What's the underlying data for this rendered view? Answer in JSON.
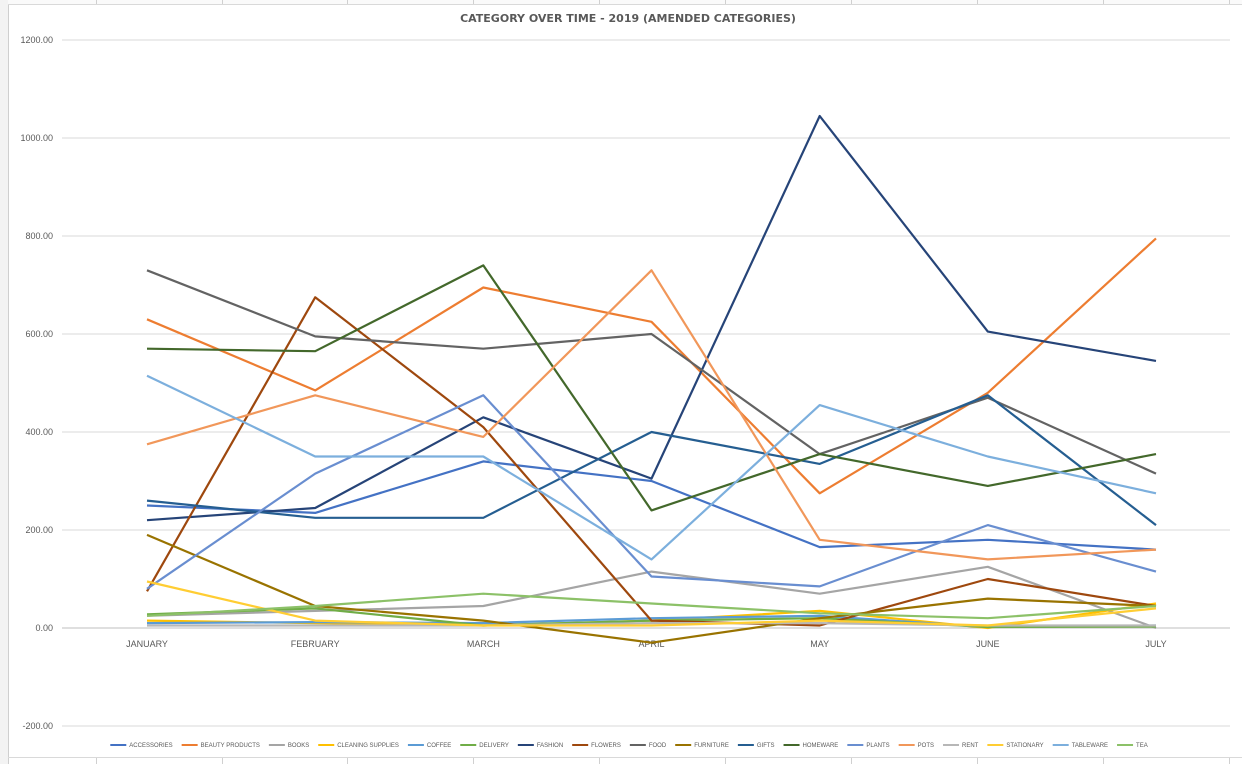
{
  "chart_data": {
    "type": "line",
    "title": "CATEGORY OVER TIME - 2019 (AMENDED CATEGORIES)",
    "xlabel": "",
    "ylabel": "",
    "categories": [
      "JANUARY",
      "FEBRUARY",
      "MARCH",
      "APRIL",
      "MAY",
      "JUNE",
      "JULY"
    ],
    "ylim": [
      -200,
      1200
    ],
    "y_ticks": [
      "-200.00",
      "0.00",
      "200.00",
      "400.00",
      "600.00",
      "800.00",
      "1000.00",
      "1200.00"
    ],
    "y_tick_values": [
      -200,
      0,
      200,
      400,
      600,
      800,
      1000,
      1200
    ],
    "grid": true,
    "legend_position": "bottom",
    "series": [
      {
        "name": "ACCESSORIES",
        "color": "#4472c4",
        "values": [
          250,
          235,
          340,
          300,
          165,
          180,
          160
        ]
      },
      {
        "name": "BEAUTY PRODUCTS",
        "color": "#ed7d31",
        "values": [
          630,
          485,
          695,
          625,
          275,
          480,
          795
        ]
      },
      {
        "name": "BOOKS",
        "color": "#a5a5a5",
        "values": [
          25,
          35,
          45,
          115,
          70,
          125,
          0
        ]
      },
      {
        "name": "CLEANING SUPPLIES",
        "color": "#ffc000",
        "values": [
          15,
          10,
          5,
          15,
          35,
          0,
          50
        ]
      },
      {
        "name": "COFFEE",
        "color": "#5b9bd5",
        "values": [
          10,
          12,
          10,
          20,
          25,
          2,
          5
        ]
      },
      {
        "name": "DELIVERY",
        "color": "#70ad47",
        "values": [
          28,
          40,
          5,
          15,
          20,
          2,
          3
        ]
      },
      {
        "name": "FASHION",
        "color": "#264478",
        "values": [
          220,
          245,
          430,
          305,
          1045,
          605,
          545
        ]
      },
      {
        "name": "FLOWERS",
        "color": "#9e480e",
        "values": [
          75,
          675,
          410,
          15,
          5,
          100,
          45
        ]
      },
      {
        "name": "FOOD",
        "color": "#636363",
        "values": [
          730,
          595,
          570,
          600,
          355,
          470,
          315
        ]
      },
      {
        "name": "FURNITURE",
        "color": "#997300",
        "values": [
          190,
          45,
          15,
          -30,
          20,
          60,
          45
        ]
      },
      {
        "name": "GIFTS",
        "color": "#255e91",
        "values": [
          260,
          225,
          225,
          400,
          335,
          475,
          210
        ]
      },
      {
        "name": "HOMEWARE",
        "color": "#43682b",
        "values": [
          570,
          565,
          740,
          240,
          355,
          290,
          355
        ]
      },
      {
        "name": "PLANTS",
        "color": "#698ed0",
        "values": [
          80,
          315,
          475,
          105,
          85,
          210,
          115
        ]
      },
      {
        "name": "POTS",
        "color": "#f1975a",
        "values": [
          375,
          475,
          390,
          730,
          180,
          140,
          160
        ]
      },
      {
        "name": "RENT",
        "color": "#b7b7b7",
        "values": [
          5,
          5,
          5,
          10,
          10,
          5,
          5
        ]
      },
      {
        "name": "STATIONARY",
        "color": "#ffcd33",
        "values": [
          95,
          15,
          5,
          5,
          15,
          5,
          40
        ]
      },
      {
        "name": "TABLEWARE",
        "color": "#7cafdd",
        "values": [
          515,
          350,
          350,
          140,
          455,
          350,
          275
        ]
      },
      {
        "name": "TEA",
        "color": "#8cc168",
        "values": [
          25,
          45,
          70,
          50,
          30,
          20,
          45
        ]
      }
    ]
  }
}
